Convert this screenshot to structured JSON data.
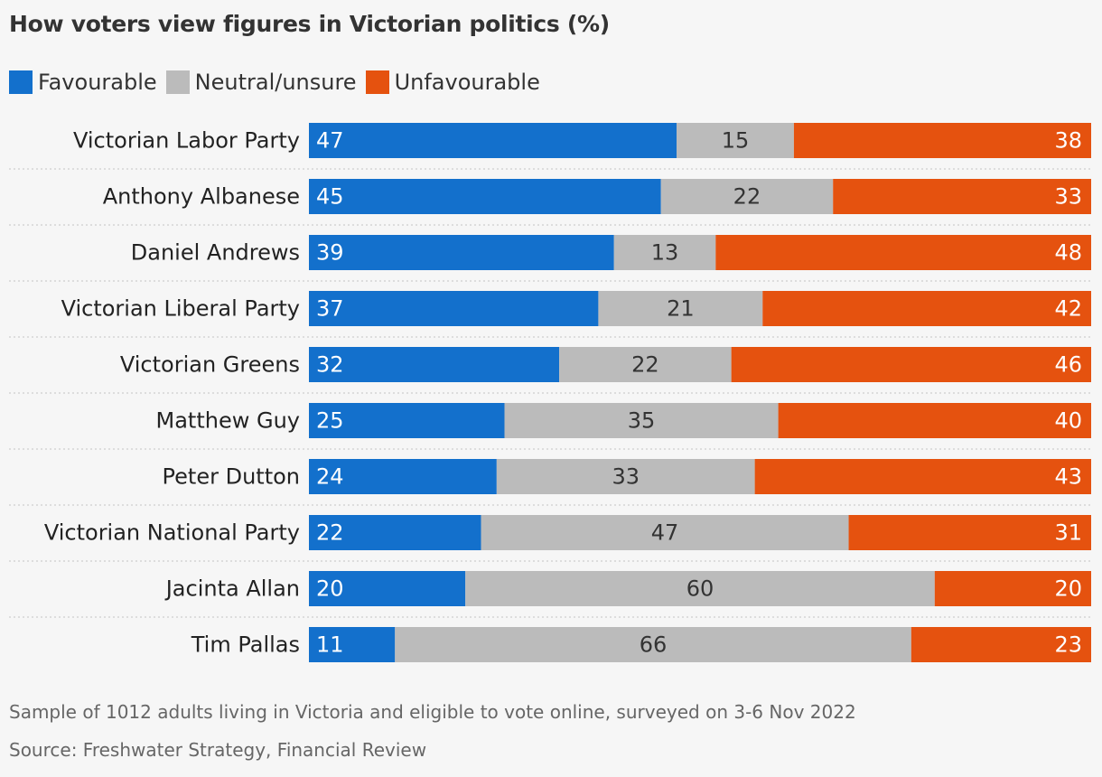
{
  "header": {
    "title": "How voters view figures in Victorian politics (%)"
  },
  "legend": [
    {
      "label": "Favourable",
      "color": "#1370cc"
    },
    {
      "label": "Neutral/unsure",
      "color": "#bbbbbb"
    },
    {
      "label": "Unfavourable",
      "color": "#e5520f"
    }
  ],
  "chart_data": {
    "type": "bar",
    "orientation": "horizontal",
    "stacked": true,
    "categories": [
      "Victorian Labor Party",
      "Anthony Albanese",
      "Daniel Andrews",
      "Victorian Liberal Party",
      "Victorian Greens",
      "Matthew Guy",
      "Peter Dutton",
      "Victorian National Party",
      "Jacinta Allan",
      "Tim Pallas"
    ],
    "series": [
      {
        "name": "Favourable",
        "color": "#1370cc",
        "values": [
          47,
          45,
          39,
          37,
          32,
          25,
          24,
          22,
          20,
          11
        ]
      },
      {
        "name": "Neutral/unsure",
        "color": "#bbbbbb",
        "values": [
          15,
          22,
          13,
          21,
          22,
          35,
          33,
          47,
          60,
          66
        ]
      },
      {
        "name": "Unfavourable",
        "color": "#e5520f",
        "values": [
          38,
          33,
          48,
          42,
          46,
          40,
          43,
          31,
          20,
          23
        ]
      }
    ],
    "title": "How voters view figures in Victorian politics (%)",
    "xlim": [
      0,
      100
    ],
    "data_labels": true,
    "legend_position": "top-left"
  },
  "footer": {
    "note": "Sample of 1012 adults living in Victoria and eligible to vote online, surveyed on 3-6 Nov 2022",
    "source": "Source: Freshwater Strategy, Financial Review"
  }
}
